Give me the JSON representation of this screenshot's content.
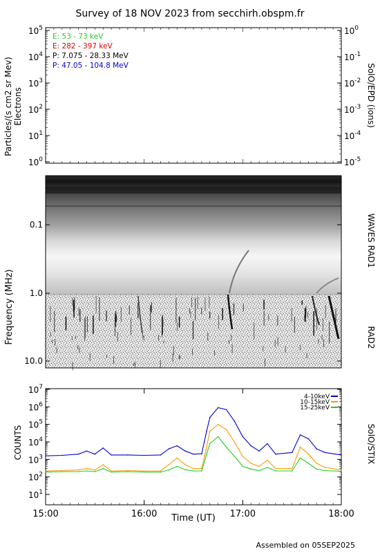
{
  "title": "Survey of 18 NOV 2023 from secchirh.obspm.fr",
  "footer": "Assembled on 05SEP2025",
  "panels": {
    "epd": {
      "ylabel_line1": "Particles/(s cm2 sr Mev)",
      "ylabel_line2": "Electrons",
      "right_label": "SolO/EPD (ions)",
      "left_ticks": [
        {
          "base": "10",
          "exp": "5"
        },
        {
          "base": "10",
          "exp": "4"
        },
        {
          "base": "10",
          "exp": "3"
        },
        {
          "base": "10",
          "exp": "2"
        },
        {
          "base": "10",
          "exp": "1"
        },
        {
          "base": "10",
          "exp": "0"
        }
      ],
      "right_ticks": [
        {
          "base": "10",
          "exp": "0"
        },
        {
          "base": "10",
          "exp": "-1"
        },
        {
          "base": "10",
          "exp": "-2"
        },
        {
          "base": "10",
          "exp": "-3"
        },
        {
          "base": "10",
          "exp": "-4"
        },
        {
          "base": "10",
          "exp": "-5"
        }
      ],
      "legend": [
        {
          "text": "E: 53 - 73 keV",
          "color": "#22cc22"
        },
        {
          "text": "E: 282 - 397 keV",
          "color": "#dd0000"
        },
        {
          "text": "P: 7.075 - 28.33 MeV",
          "color": "#000000"
        },
        {
          "text": "P: 47.05 - 104.8 MeV",
          "color": "#0000cc"
        }
      ]
    },
    "spectrogram": {
      "ylabel": "Frequency (MHz)",
      "label_rad1": "WAVES RAD1",
      "label_rad2": "RAD2",
      "ticks": [
        "0.1",
        "1.0",
        "10.0"
      ]
    },
    "stix": {
      "ylabel": "COUNTS",
      "right_label": "SolO/STIX",
      "xlabel": "Time (UT)",
      "x_ticks": [
        "15:00",
        "16:00",
        "17:00",
        "18:00"
      ],
      "y_ticks": [
        {
          "base": "10",
          "exp": "7"
        },
        {
          "base": "10",
          "exp": "6"
        },
        {
          "base": "10",
          "exp": "5"
        },
        {
          "base": "10",
          "exp": "4"
        },
        {
          "base": "10",
          "exp": "3"
        },
        {
          "base": "10",
          "exp": "2"
        },
        {
          "base": "10",
          "exp": "1"
        }
      ]
    }
  },
  "chart_data": {
    "type": "line",
    "title": "SolO/STIX",
    "xlabel": "Time (UT)",
    "ylabel": "COUNTS",
    "yscale": "log",
    "ylim": [
      10,
      10000000
    ],
    "x_range": [
      "15:00",
      "18:00"
    ],
    "x": [
      "15:00",
      "15:10",
      "15:20",
      "15:25",
      "15:30",
      "15:35",
      "15:40",
      "15:50",
      "16:00",
      "16:10",
      "16:15",
      "16:20",
      "16:25",
      "16:30",
      "16:35",
      "16:38",
      "16:40",
      "16:45",
      "16:50",
      "16:55",
      "17:00",
      "17:05",
      "17:10",
      "17:15",
      "17:20",
      "17:30",
      "17:35",
      "17:40",
      "17:45",
      "17:50",
      "18:00"
    ],
    "series": [
      {
        "name": "4-10keV",
        "color": "#0000cc",
        "values": [
          1600,
          1700,
          2000,
          3000,
          2000,
          4500,
          1800,
          1800,
          1700,
          1800,
          4000,
          6000,
          3000,
          2000,
          2100,
          40000,
          250000,
          900000,
          700000,
          150000,
          20000,
          6000,
          3000,
          8000,
          2000,
          2500,
          25000,
          15000,
          4000,
          2500,
          1800
        ]
      },
      {
        "name": "10-15keV",
        "color": "#ff9900",
        "values": [
          220,
          230,
          250,
          300,
          250,
          500,
          220,
          230,
          220,
          220,
          500,
          1200,
          500,
          300,
          300,
          5000,
          40000,
          100000,
          50000,
          10000,
          1500,
          600,
          400,
          900,
          300,
          300,
          5000,
          2000,
          600,
          350,
          250
        ]
      },
      {
        "name": "15-25keV",
        "color": "#22cc22",
        "values": [
          190,
          200,
          200,
          220,
          200,
          300,
          190,
          200,
          190,
          190,
          250,
          400,
          260,
          220,
          220,
          2000,
          8000,
          20000,
          5000,
          1500,
          400,
          280,
          230,
          350,
          220,
          220,
          1200,
          600,
          280,
          230,
          210
        ]
      }
    ]
  }
}
